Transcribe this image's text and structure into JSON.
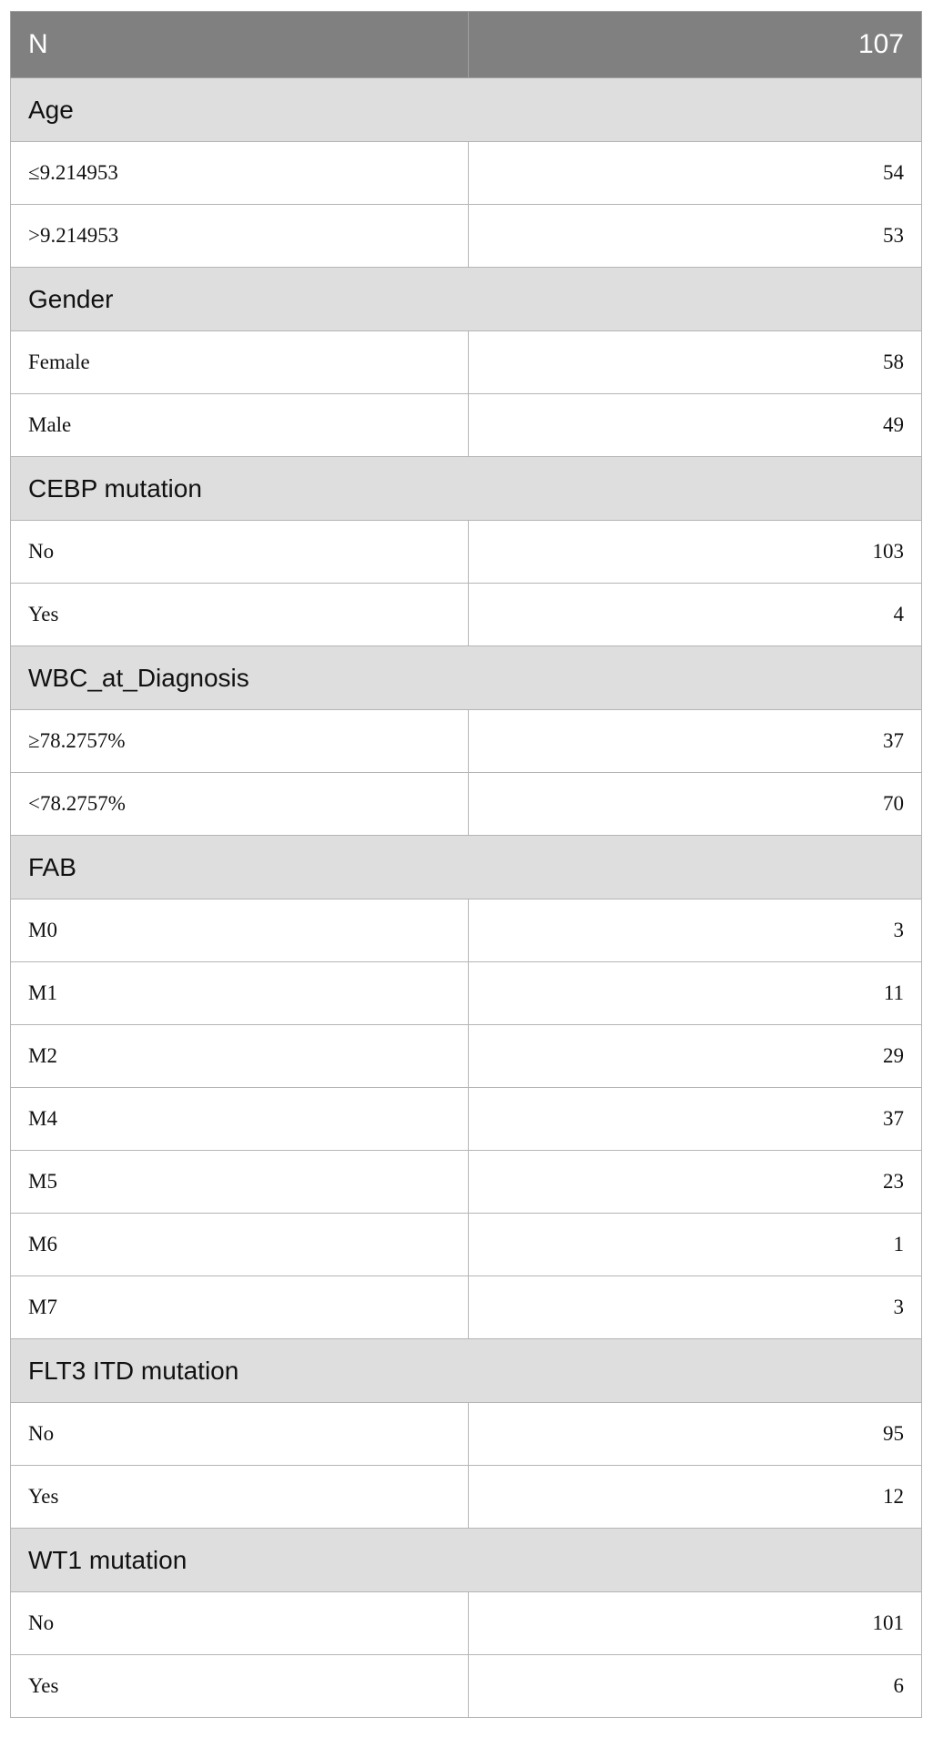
{
  "header": {
    "label": "N",
    "value": "107"
  },
  "groups": [
    {
      "title": "Age",
      "rows": [
        {
          "label": "≤9.214953",
          "value": "54"
        },
        {
          "label": ">9.214953",
          "value": "53"
        }
      ]
    },
    {
      "title": "Gender",
      "rows": [
        {
          "label": "Female",
          "value": "58"
        },
        {
          "label": "Male",
          "value": "49"
        }
      ]
    },
    {
      "title": "CEBP mutation",
      "rows": [
        {
          "label": "No",
          "value": "103"
        },
        {
          "label": "Yes",
          "value": "4"
        }
      ]
    },
    {
      "title": "WBC_at_Diagnosis",
      "rows": [
        {
          "label": "≥78.2757%",
          "value": "37"
        },
        {
          "label": "<78.2757%",
          "value": "70"
        }
      ]
    },
    {
      "title": "FAB",
      "rows": [
        {
          "label": "M0",
          "value": "3"
        },
        {
          "label": "M1",
          "value": "11"
        },
        {
          "label": "M2",
          "value": "29"
        },
        {
          "label": "M4",
          "value": "37"
        },
        {
          "label": "M5",
          "value": "23"
        },
        {
          "label": "M6",
          "value": "1"
        },
        {
          "label": "M7",
          "value": "3"
        }
      ]
    },
    {
      "title": "FLT3 ITD mutation",
      "rows": [
        {
          "label": "No",
          "value": "95"
        },
        {
          "label": "Yes",
          "value": "12"
        }
      ]
    },
    {
      "title": "WT1 mutation",
      "rows": [
        {
          "label": "No",
          "value": "101"
        },
        {
          "label": "Yes",
          "value": "6"
        }
      ]
    }
  ]
}
